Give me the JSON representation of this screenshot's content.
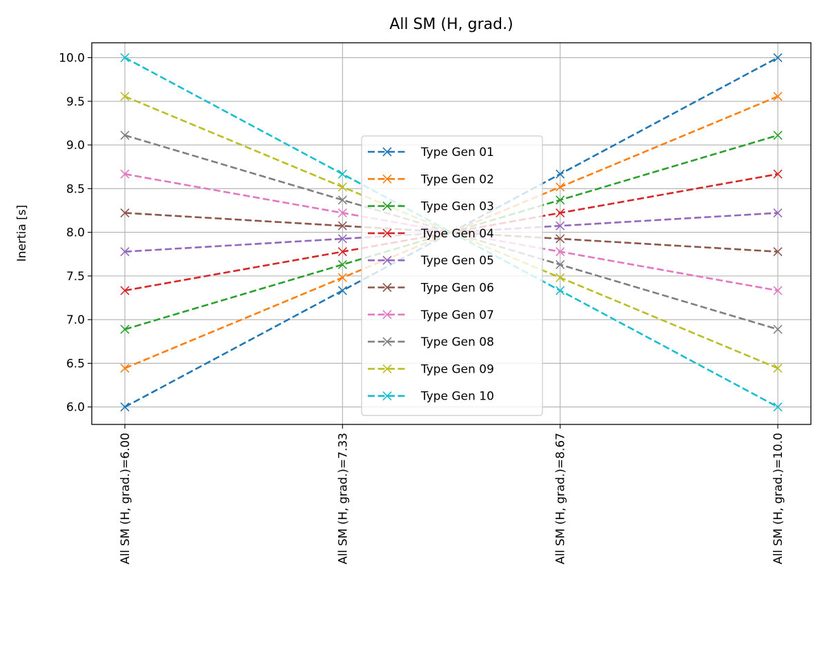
{
  "chart_data": {
    "type": "line",
    "title": "All SM (H, grad.)",
    "xlabel": "",
    "ylabel": "Inertia [s]",
    "categories": [
      "All SM (H, grad.)=6.00",
      "All SM (H, grad.)=7.33",
      "All SM (H, grad.)=8.67",
      "All SM (H, grad.)=10.0"
    ],
    "yticks": [
      "6.0",
      "6.5",
      "7.0",
      "7.5",
      "8.0",
      "8.5",
      "9.0",
      "9.5",
      "10.0"
    ],
    "ylim": [
      5.8,
      10.17
    ],
    "grid": true,
    "legend_position": "center",
    "marker": "x",
    "linestyle": "dashed",
    "series": [
      {
        "name": "Type Gen 01",
        "color": "#1f77b4",
        "values": [
          6.0,
          7.333,
          8.667,
          10.0
        ]
      },
      {
        "name": "Type Gen 02",
        "color": "#ff7f0e",
        "values": [
          6.444,
          7.481,
          8.519,
          9.556
        ]
      },
      {
        "name": "Type Gen 03",
        "color": "#2ca02c",
        "values": [
          6.889,
          7.63,
          8.37,
          9.111
        ]
      },
      {
        "name": "Type Gen 04",
        "color": "#d62728",
        "values": [
          7.333,
          7.778,
          8.222,
          8.667
        ]
      },
      {
        "name": "Type Gen 05",
        "color": "#9467bd",
        "values": [
          7.778,
          7.926,
          8.074,
          8.222
        ]
      },
      {
        "name": "Type Gen 06",
        "color": "#8c564b",
        "values": [
          8.222,
          8.074,
          7.926,
          7.778
        ]
      },
      {
        "name": "Type Gen 07",
        "color": "#e377c2",
        "values": [
          8.667,
          8.222,
          7.778,
          7.333
        ]
      },
      {
        "name": "Type Gen 08",
        "color": "#7f7f7f",
        "values": [
          9.111,
          8.37,
          7.63,
          6.889
        ]
      },
      {
        "name": "Type Gen 09",
        "color": "#bcbd22",
        "values": [
          9.556,
          8.519,
          7.481,
          6.444
        ]
      },
      {
        "name": "Type Gen 10",
        "color": "#17becf",
        "values": [
          10.0,
          8.667,
          7.333,
          6.0
        ]
      }
    ]
  }
}
